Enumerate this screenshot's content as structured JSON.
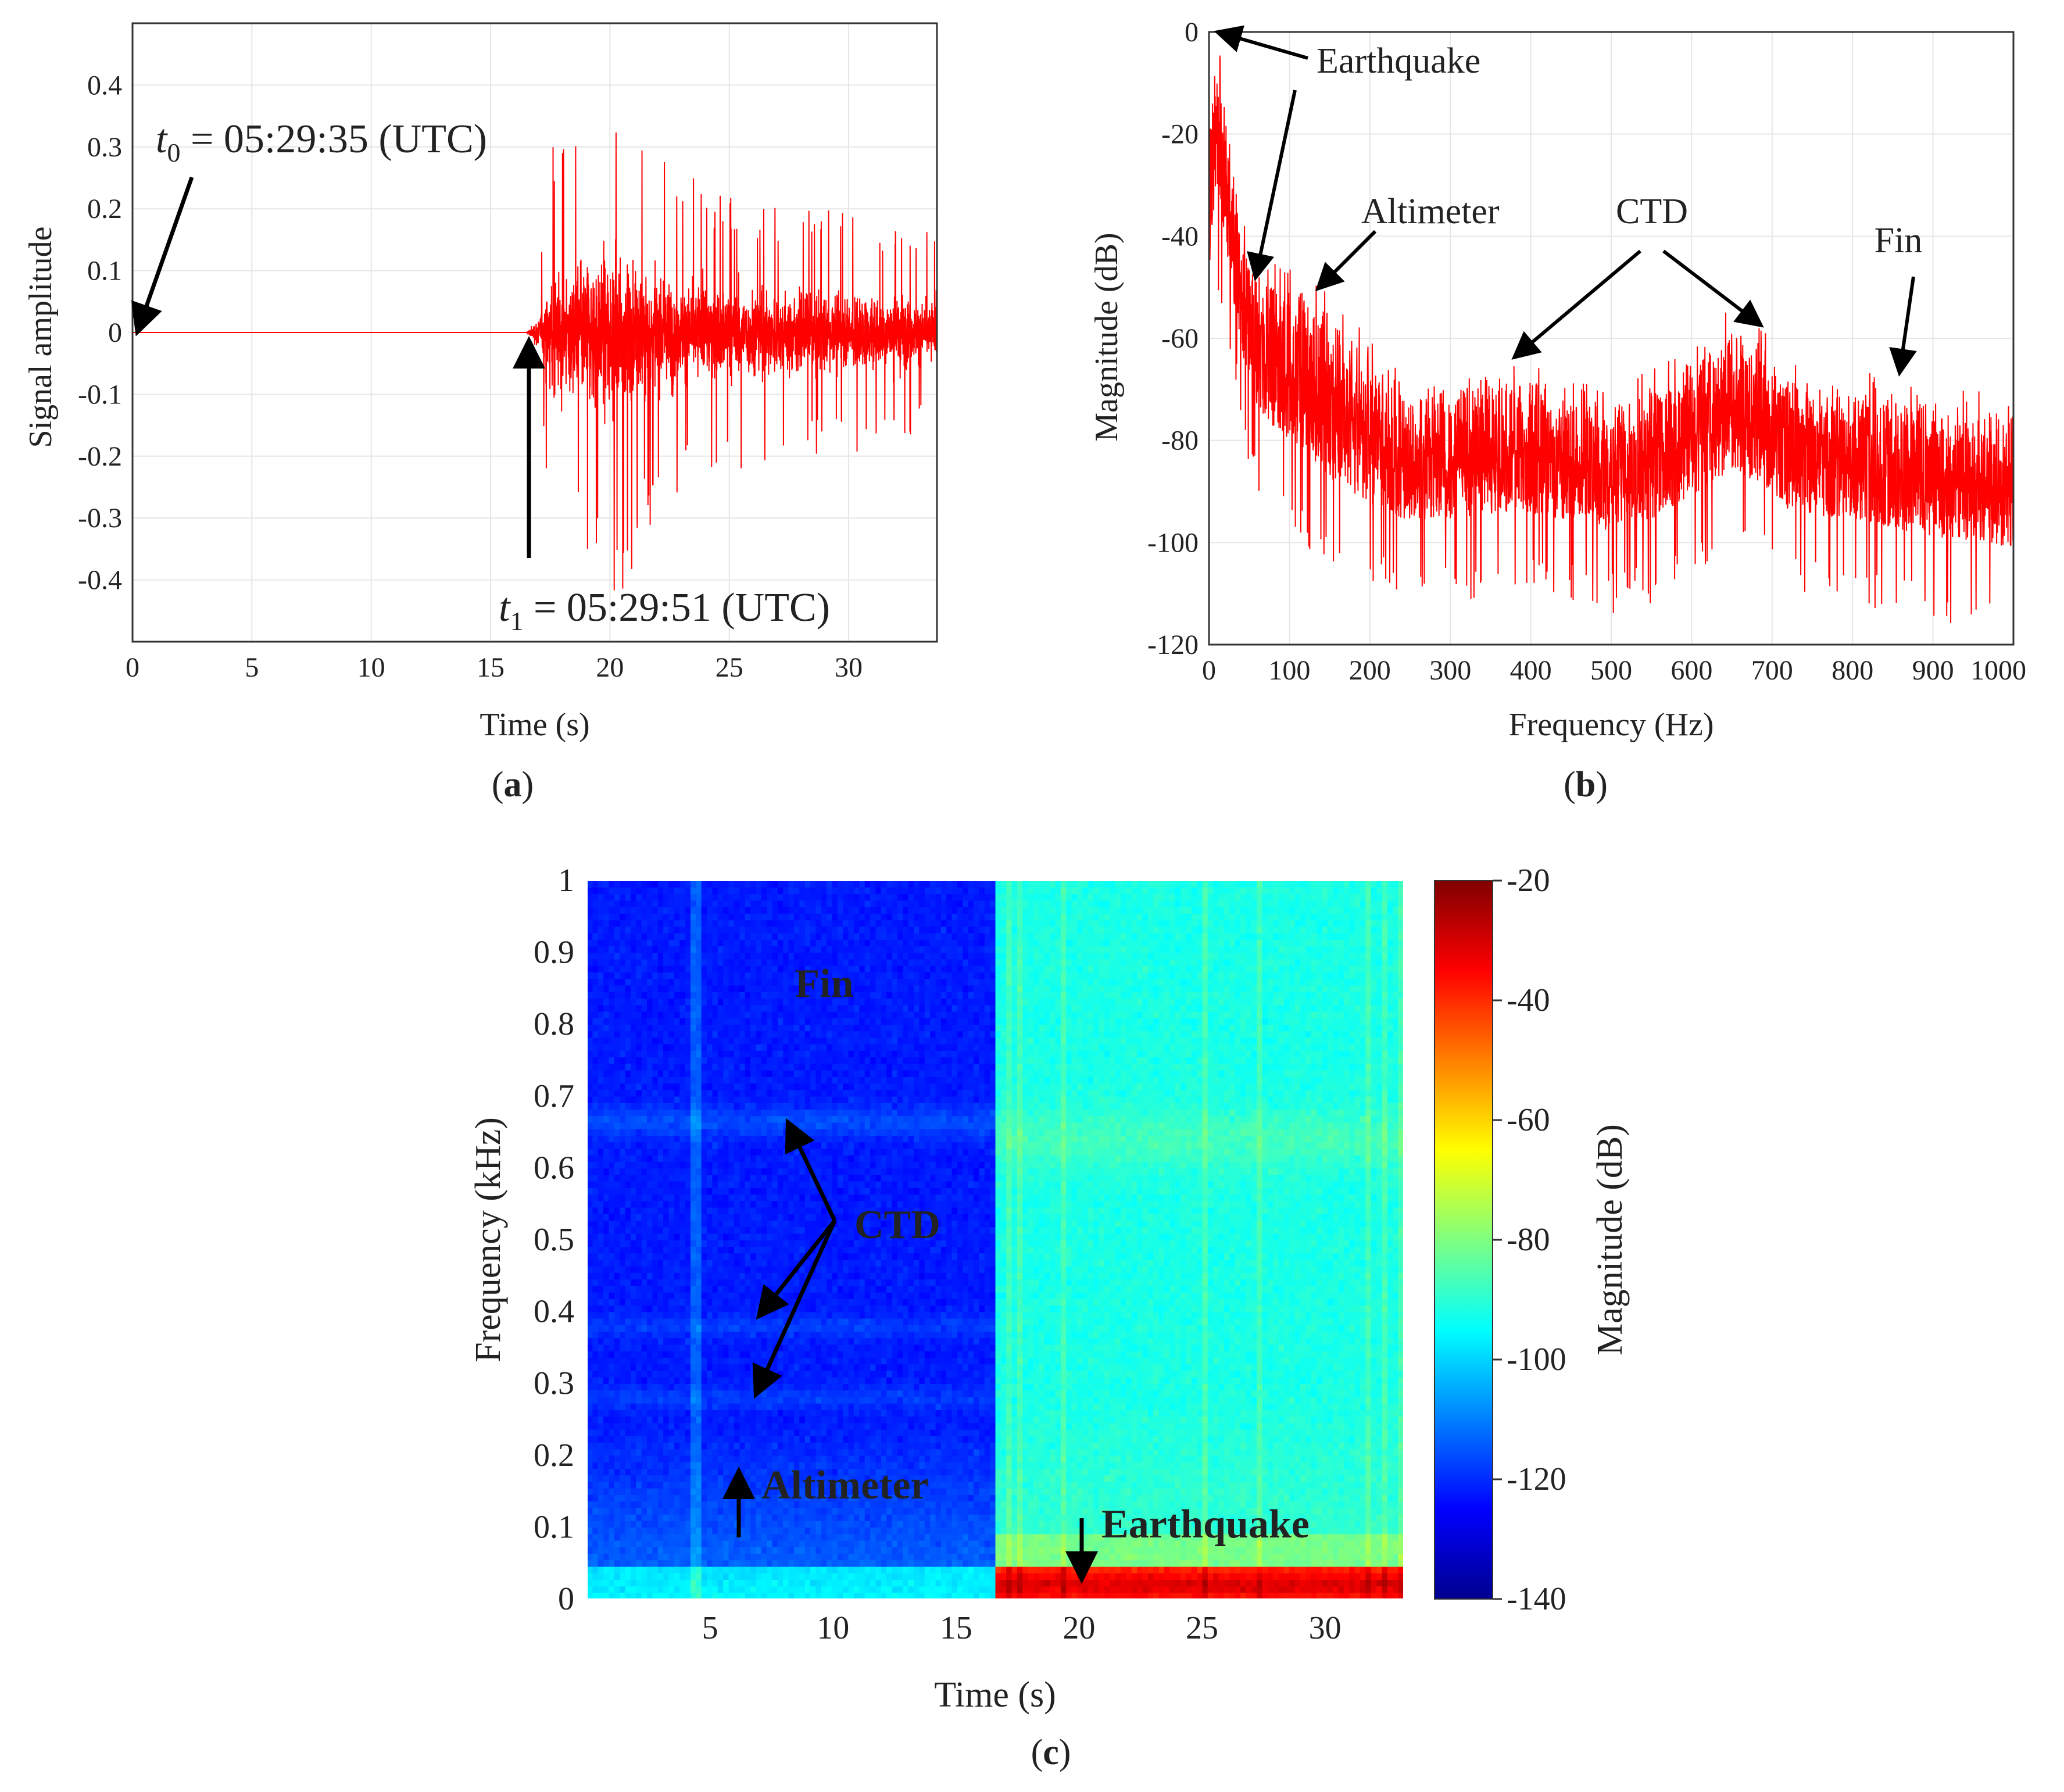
{
  "chart_data": [
    {
      "panel_label": "a",
      "type": "line",
      "xlabel": "Time (s)",
      "ylabel": "Signal amplitude",
      "xlim": [
        0,
        33.7
      ],
      "ylim": [
        -0.5,
        0.5
      ],
      "xticks": [
        0,
        5,
        10,
        15,
        20,
        25,
        30
      ],
      "yticks": [
        -0.4,
        -0.3,
        -0.2,
        -0.1,
        0,
        0.1,
        0.2,
        0.3,
        0.4
      ],
      "grid": true,
      "color": "#ff0000",
      "quiet_until": 16.5,
      "envelope_x": [
        16.5,
        17.0,
        17.5,
        18.5,
        19.5,
        20.5,
        21.5,
        22.5,
        24,
        26,
        28,
        30,
        32,
        33.7
      ],
      "envelope_y": [
        0.0,
        0.08,
        0.3,
        0.32,
        0.4,
        0.44,
        0.32,
        0.28,
        0.24,
        0.22,
        0.2,
        0.2,
        0.18,
        0.16
      ],
      "annotations": [
        {
          "var": "t",
          "sub": "0",
          "text": " = 05:29:35 (UTC)",
          "x": 0,
          "y": 0
        },
        {
          "var": "t",
          "sub": "1",
          "text": " = 05:29:51 (UTC)",
          "x": 16.6,
          "y": 0
        }
      ]
    },
    {
      "panel_label": "b",
      "type": "line",
      "xlabel": "Frequency (Hz)",
      "ylabel": "Magnitude (dB)",
      "xlim": [
        0,
        1000
      ],
      "ylim": [
        -120,
        0
      ],
      "xticks": [
        0,
        100,
        200,
        300,
        400,
        500,
        600,
        700,
        800,
        900,
        1000
      ],
      "yticks": [
        0,
        -20,
        -40,
        -60,
        -80,
        -100,
        -120
      ],
      "grid": true,
      "color": "#ff0000",
      "upper_envelope_x": [
        0,
        8,
        15,
        25,
        40,
        55,
        70,
        100,
        150,
        200,
        250,
        300,
        350,
        400,
        450,
        500,
        550,
        600,
        650,
        680,
        720,
        780,
        850,
        900,
        950,
        1000
      ],
      "upper_envelope_y": [
        -20,
        -2,
        -5,
        -20,
        -40,
        -47,
        -49,
        -50,
        -55,
        -64,
        -72,
        -70,
        -68,
        -68,
        -72,
        -73,
        -70,
        -64,
        -58,
        -60,
        -68,
        -70,
        -71,
        -73,
        -74,
        -75
      ],
      "lower_envelope_y": [
        -60,
        -40,
        -45,
        -55,
        -70,
        -80,
        -85,
        -90,
        -98,
        -102,
        -104,
        -104,
        -103,
        -103,
        -104,
        -106,
        -104,
        -100,
        -96,
        -97,
        -102,
        -104,
        -106,
        -108,
        -108,
        -110
      ],
      "annotations": [
        {
          "text": "Earthquake",
          "targets": [
            [
              10,
              -2
            ],
            [
              55,
              -49
            ]
          ]
        },
        {
          "text": "Altimeter",
          "targets": [
            [
              135,
              -51
            ]
          ]
        },
        {
          "text": "CTD",
          "targets": [
            [
              370,
              -64
            ],
            [
              680,
              -58
            ]
          ]
        },
        {
          "text": "Fin",
          "targets": [
            [
              855,
              -67
            ]
          ]
        }
      ]
    },
    {
      "panel_label": "c",
      "type": "heatmap",
      "xlabel": "Time (s)",
      "ylabel": "Frequency (kHz)",
      "xlim": [
        0,
        33.2
      ],
      "ylim": [
        0,
        1
      ],
      "xticks": [
        5,
        10,
        15,
        20,
        25,
        30
      ],
      "yticks": [
        0,
        0.1,
        0.2,
        0.3,
        0.4,
        0.5,
        0.6,
        0.7,
        0.8,
        0.9,
        1
      ],
      "colorbar_label": "Magnitude (dB)",
      "colorbar_range": [
        -140,
        -20
      ],
      "colorbar_ticks": [
        -20,
        -40,
        -60,
        -80,
        -100,
        -120,
        -140
      ],
      "colormap": "jet",
      "event_onset": 16.5,
      "quiet_level_db": -122,
      "event_level_db": -92,
      "earthquake_band_khz": [
        0,
        0.045
      ],
      "earthquake_level_db": -30,
      "annotations": [
        {
          "text": "Fin",
          "x": 9.7,
          "y": 0.855
        },
        {
          "text": "CTD",
          "x": 13.2,
          "y": 0.52,
          "targets": [
            [
              8.6,
              0.66
            ],
            [
              7.3,
              0.4
            ],
            [
              7.2,
              0.28
            ]
          ]
        },
        {
          "text": "Altimeter",
          "x": 7.0,
          "y": 0.14,
          "arrow": "up"
        },
        {
          "text": "Earthquake",
          "x": 21.0,
          "y": 0.105,
          "arrow": "down"
        }
      ]
    }
  ]
}
